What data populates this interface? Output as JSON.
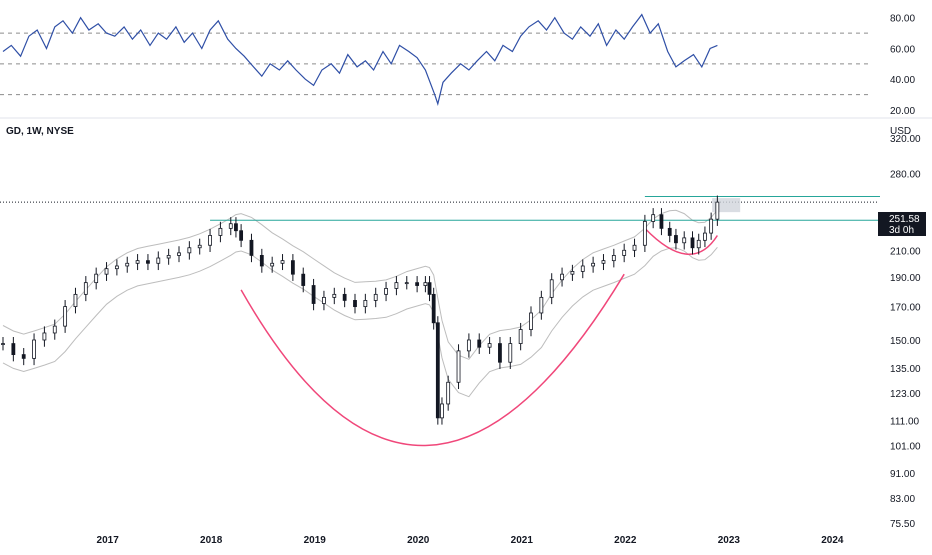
{
  "header": {
    "symbol_label": "GD, 1W, NYSE",
    "currency": "USD"
  },
  "price_badge": {
    "price": "251.58",
    "countdown": "3d 0h"
  },
  "colors": {
    "candle": "#131722",
    "bollinger": "#bdbdbd",
    "rsi_line": "#2f4fa6",
    "rsi_guides": "#8c8c8c",
    "resistance": "#26a69a",
    "cup_arc": "#f0477a",
    "badge_bg": "#131722",
    "axis_text": "#131722"
  },
  "chart_data": [
    {
      "type": "line",
      "name": "RSI panel",
      "y_ticks": [
        "80.00",
        "60.00",
        "40.00",
        "20.00"
      ],
      "ylim": [
        20,
        85
      ],
      "guides": [
        70,
        50,
        30
      ],
      "x_range": [
        2016.0,
        2023.0
      ],
      "points": [
        [
          2016.0,
          58
        ],
        [
          2016.08,
          62
        ],
        [
          2016.17,
          55
        ],
        [
          2016.25,
          68
        ],
        [
          2016.33,
          72
        ],
        [
          2016.42,
          60
        ],
        [
          2016.5,
          74
        ],
        [
          2016.58,
          78
        ],
        [
          2016.67,
          70
        ],
        [
          2016.75,
          80
        ],
        [
          2016.83,
          72
        ],
        [
          2016.92,
          76
        ],
        [
          2017.0,
          70
        ],
        [
          2017.08,
          68
        ],
        [
          2017.17,
          74
        ],
        [
          2017.25,
          66
        ],
        [
          2017.33,
          72
        ],
        [
          2017.42,
          62
        ],
        [
          2017.5,
          70
        ],
        [
          2017.58,
          66
        ],
        [
          2017.67,
          74
        ],
        [
          2017.75,
          64
        ],
        [
          2017.83,
          70
        ],
        [
          2017.92,
          60
        ],
        [
          2018.0,
          72
        ],
        [
          2018.08,
          78
        ],
        [
          2018.17,
          66
        ],
        [
          2018.25,
          60
        ],
        [
          2018.33,
          55
        ],
        [
          2018.42,
          48
        ],
        [
          2018.5,
          42
        ],
        [
          2018.58,
          50
        ],
        [
          2018.67,
          46
        ],
        [
          2018.75,
          52
        ],
        [
          2018.83,
          46
        ],
        [
          2018.92,
          40
        ],
        [
          2019.0,
          36
        ],
        [
          2019.08,
          46
        ],
        [
          2019.17,
          50
        ],
        [
          2019.25,
          44
        ],
        [
          2019.33,
          56
        ],
        [
          2019.42,
          48
        ],
        [
          2019.5,
          52
        ],
        [
          2019.58,
          46
        ],
        [
          2019.67,
          58
        ],
        [
          2019.75,
          50
        ],
        [
          2019.83,
          62
        ],
        [
          2019.92,
          58
        ],
        [
          2020.0,
          54
        ],
        [
          2020.08,
          46
        ],
        [
          2020.17,
          30
        ],
        [
          2020.2,
          24
        ],
        [
          2020.25,
          38
        ],
        [
          2020.33,
          44
        ],
        [
          2020.42,
          50
        ],
        [
          2020.5,
          46
        ],
        [
          2020.58,
          52
        ],
        [
          2020.67,
          58
        ],
        [
          2020.75,
          52
        ],
        [
          2020.83,
          62
        ],
        [
          2020.92,
          58
        ],
        [
          2021.0,
          68
        ],
        [
          2021.08,
          74
        ],
        [
          2021.17,
          78
        ],
        [
          2021.25,
          72
        ],
        [
          2021.33,
          80
        ],
        [
          2021.42,
          70
        ],
        [
          2021.5,
          66
        ],
        [
          2021.58,
          74
        ],
        [
          2021.67,
          68
        ],
        [
          2021.75,
          76
        ],
        [
          2021.83,
          62
        ],
        [
          2021.92,
          72
        ],
        [
          2022.0,
          66
        ],
        [
          2022.08,
          74
        ],
        [
          2022.17,
          82
        ],
        [
          2022.25,
          70
        ],
        [
          2022.33,
          76
        ],
        [
          2022.42,
          58
        ],
        [
          2022.5,
          48
        ],
        [
          2022.58,
          52
        ],
        [
          2022.67,
          56
        ],
        [
          2022.75,
          48
        ],
        [
          2022.83,
          60
        ],
        [
          2022.9,
          62
        ]
      ]
    },
    {
      "type": "candlestick",
      "name": "GD price panel",
      "y_ticks": [
        "320.00",
        "280.00",
        "251.58",
        "210.00",
        "190.00",
        "170.00",
        "150.00",
        "135.00",
        "123.00",
        "111.00",
        "101.00",
        "91.00",
        "83.00",
        "75.50"
      ],
      "ylim": [
        75.5,
        320
      ],
      "y_scale": "log",
      "x_ticks": [
        "2017",
        "2018",
        "2019",
        "2020",
        "2021",
        "2022",
        "2023",
        "2024"
      ],
      "x_tick_values": [
        2017,
        2018,
        2019,
        2020,
        2021,
        2022,
        2023,
        2024
      ],
      "x_range": [
        2016.0,
        2024.5
      ],
      "resistance_levels": [
        235,
        257
      ],
      "last_close_level": 251.58,
      "cup_arc": {
        "start": [
          2018.3,
          181
        ],
        "bottom": [
          2020.1,
          101
        ],
        "end": [
          2022.0,
          192
        ]
      },
      "handle_arc": {
        "start": [
          2022.2,
          228
        ],
        "bottom": [
          2022.6,
          207
        ],
        "end": [
          2022.9,
          222
        ]
      },
      "closes": [
        [
          2016.0,
          148
        ],
        [
          2016.1,
          142
        ],
        [
          2016.2,
          140
        ],
        [
          2016.3,
          150
        ],
        [
          2016.4,
          154
        ],
        [
          2016.5,
          158
        ],
        [
          2016.6,
          170
        ],
        [
          2016.7,
          178
        ],
        [
          2016.8,
          186
        ],
        [
          2016.9,
          192
        ],
        [
          2017.0,
          196
        ],
        [
          2017.1,
          198
        ],
        [
          2017.2,
          200
        ],
        [
          2017.3,
          202
        ],
        [
          2017.4,
          200
        ],
        [
          2017.5,
          204
        ],
        [
          2017.6,
          206
        ],
        [
          2017.7,
          208
        ],
        [
          2017.8,
          212
        ],
        [
          2017.9,
          214
        ],
        [
          2018.0,
          222
        ],
        [
          2018.1,
          228
        ],
        [
          2018.2,
          232
        ],
        [
          2018.25,
          226
        ],
        [
          2018.3,
          218
        ],
        [
          2018.4,
          206
        ],
        [
          2018.5,
          198
        ],
        [
          2018.6,
          200
        ],
        [
          2018.7,
          202
        ],
        [
          2018.8,
          192
        ],
        [
          2018.9,
          184
        ],
        [
          2019.0,
          172
        ],
        [
          2019.1,
          176
        ],
        [
          2019.2,
          178
        ],
        [
          2019.3,
          174
        ],
        [
          2019.4,
          170
        ],
        [
          2019.5,
          174
        ],
        [
          2019.6,
          178
        ],
        [
          2019.7,
          182
        ],
        [
          2019.8,
          186
        ],
        [
          2019.9,
          186
        ],
        [
          2020.0,
          184
        ],
        [
          2020.08,
          186
        ],
        [
          2020.12,
          178
        ],
        [
          2020.16,
          160
        ],
        [
          2020.2,
          112
        ],
        [
          2020.24,
          118
        ],
        [
          2020.3,
          128
        ],
        [
          2020.4,
          144
        ],
        [
          2020.5,
          150
        ],
        [
          2020.6,
          146
        ],
        [
          2020.7,
          148
        ],
        [
          2020.8,
          138
        ],
        [
          2020.9,
          148
        ],
        [
          2021.0,
          156
        ],
        [
          2021.1,
          166
        ],
        [
          2021.2,
          176
        ],
        [
          2021.3,
          188
        ],
        [
          2021.4,
          192
        ],
        [
          2021.5,
          194
        ],
        [
          2021.6,
          198
        ],
        [
          2021.7,
          200
        ],
        [
          2021.8,
          202
        ],
        [
          2021.9,
          206
        ],
        [
          2022.0,
          210
        ],
        [
          2022.1,
          214
        ],
        [
          2022.2,
          234
        ],
        [
          2022.28,
          240
        ],
        [
          2022.36,
          228
        ],
        [
          2022.44,
          222
        ],
        [
          2022.5,
          216
        ],
        [
          2022.58,
          220
        ],
        [
          2022.66,
          212
        ],
        [
          2022.72,
          218
        ],
        [
          2022.78,
          224
        ],
        [
          2022.84,
          236
        ],
        [
          2022.9,
          251.58
        ]
      ]
    }
  ]
}
